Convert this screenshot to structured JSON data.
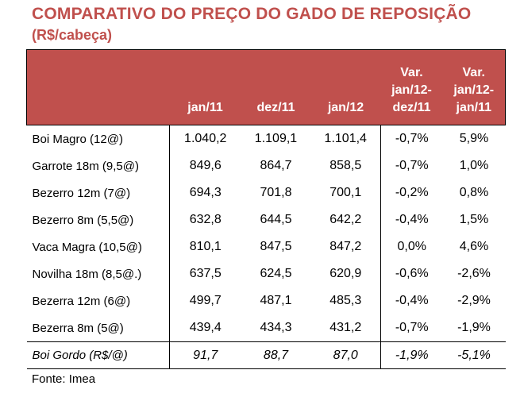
{
  "title": "COMPARATIVO DO PREÇO DO GADO DE REPOSIÇÃO",
  "subtitle": "(R$/cabeça)",
  "table": {
    "headers": [
      "",
      "jan/11",
      "dez/11",
      "jan/12",
      "Var. jan/12- dez/11",
      "Var. jan/12- jan/11"
    ],
    "rows": [
      [
        "Boi Magro (12@)",
        "1.040,2",
        "1.109,1",
        "1.101,4",
        "-0,7%",
        "5,9%"
      ],
      [
        "Garrote 18m (9,5@)",
        "849,6",
        "864,7",
        "858,5",
        "-0,7%",
        "1,0%"
      ],
      [
        "Bezerro 12m (7@)",
        "694,3",
        "701,8",
        "700,1",
        "-0,2%",
        "0,8%"
      ],
      [
        "Bezerro 8m (5,5@)",
        "632,8",
        "644,5",
        "642,2",
        "-0,4%",
        "1,5%"
      ],
      [
        "Vaca Magra (10,5@)",
        "810,1",
        "847,5",
        "847,2",
        "0,0%",
        "4,6%"
      ],
      [
        "Novilha 18m (8,5@.)",
        "637,5",
        "624,5",
        "620,9",
        "-0,6%",
        "-2,6%"
      ],
      [
        "Bezerra 12m (6@)",
        "499,7",
        "487,1",
        "485,3",
        "-0,4%",
        "-2,9%"
      ],
      [
        "Bezerra 8m (5@)",
        "439,4",
        "434,3",
        "431,2",
        "-0,7%",
        "-1,9%"
      ]
    ],
    "total_row": [
      "Boi Gordo (R$/@)",
      "91,7",
      "88,7",
      "87,0",
      "-1,9%",
      "-5,1%"
    ]
  },
  "source": "Fonte: Imea",
  "colors": {
    "accent": "#c0504d",
    "header_text": "#ffffff"
  }
}
